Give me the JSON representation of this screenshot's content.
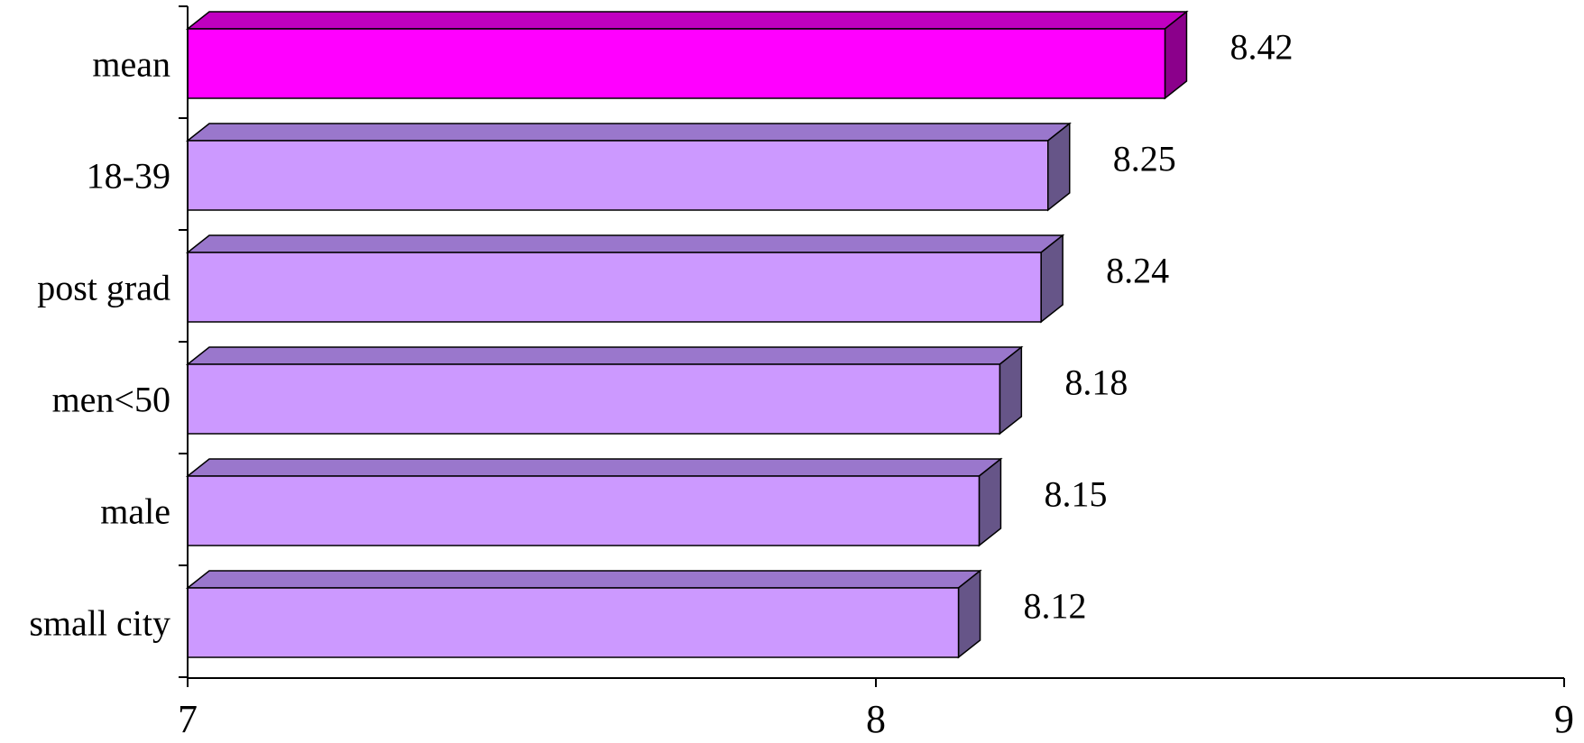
{
  "chart_data": {
    "type": "bar",
    "orientation": "horizontal",
    "style": "3d",
    "categories": [
      "mean",
      "18-39",
      "post grad",
      "men<50",
      "male",
      "small city"
    ],
    "values": [
      8.42,
      8.25,
      8.24,
      8.18,
      8.15,
      8.12
    ],
    "value_labels": [
      "8.42",
      "8.25",
      "8.24",
      "8.18",
      "8.15",
      "8.12"
    ],
    "highlight_category": "mean",
    "xlim": [
      7,
      9
    ],
    "x_ticks": [
      7,
      8,
      9
    ],
    "x_tick_labels": [
      "7",
      "8",
      "9"
    ],
    "title": "",
    "xlabel": "",
    "ylabel": "",
    "grid": false,
    "legend": "none",
    "colors": {
      "highlight_front": "#ff00ff",
      "highlight_top": "#c000c0",
      "highlight_side": "#8b008b",
      "bar_front": "#cc99ff",
      "bar_top": "#9a77cc",
      "bar_side": "#665588",
      "outline": "#000000"
    }
  }
}
